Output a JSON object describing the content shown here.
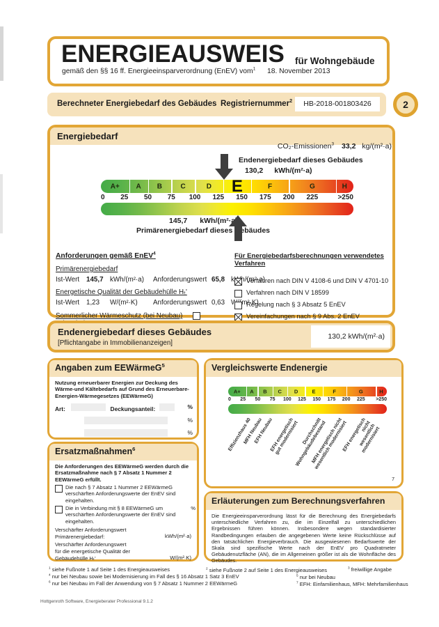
{
  "colors": {
    "gold_border": "#E2A636",
    "tan_header": "#F6E2BC",
    "scale_green": "#44ab47",
    "scale_yellow": "#fcf100",
    "scale_red": "#e2231a",
    "arrow_gray": "#3e3e3e"
  },
  "header": {
    "title": "ENERGIEAUSWEIS",
    "subtitle": "für Wohngebäude",
    "law_text": "gemäß den §§ 16 ff. Energieeinsparverordnung (EnEV) vom",
    "law_sup": "1",
    "law_date": "18. November 2013"
  },
  "regbar": {
    "label": "Berechneter Energiebedarf des Gebäudes",
    "reg_label": "Registriernummer",
    "reg_sup": "2",
    "reg_number": "HB-2018-001803426",
    "badge": "2"
  },
  "energiebedarf": {
    "section_title": "Energiebedarf",
    "co2_label": "CO₂-Emissionen",
    "co2_sup": "3",
    "co2_value": "33,2",
    "co2_unit": "kg/(m²·a)",
    "end_arrow_label": "Endenergiebedarf dieses Gebäudes",
    "end_value": "130,2",
    "end_unit": "kWh/(m²·a)",
    "prim_value": "145,7",
    "prim_unit": "kWh/(m²·a)",
    "prim_arrow_label": "Primärenergiebedarf dieses Gebäudes",
    "scale": {
      "letters": [
        "A+",
        "A",
        "B",
        "C",
        "D",
        "E",
        "F",
        "G",
        "H"
      ],
      "highlight": "E",
      "ticks": [
        "0",
        "25",
        "50",
        "75",
        "100",
        "125",
        "150",
        "175",
        "200",
        "225",
        ">250"
      ],
      "end_position": 130.2,
      "prim_position": 145.7,
      "axis_max": 250
    },
    "anf": {
      "title": "Anforderungen gemäß EnEV",
      "title_sup": "4",
      "prim_heading": "Primärenergiebedarf",
      "ist_label": "Ist-Wert",
      "ist_value": "145,7",
      "ist_unit": "kWh/(m²·a)",
      "anf_label": "Anforderungswert",
      "anf_value": "65,8",
      "anf_unit": "kWh/(m²·a)",
      "huelle_heading": "Energetische Qualität der Gebäudehülle Hₜ'",
      "ist2_label": "Ist-Wert",
      "ist2_value": "1,23",
      "ist2_unit": "W/(m²·K)",
      "anf2_label": "Anforderungswert",
      "anf2_value": "0,63",
      "anf2_unit": "W/(m²·K)",
      "sommer_heading": "Sommerlicher Wärmeschutz (bei Neubau)",
      "sommer_label": "eingehalten",
      "sommer_checked": false
    },
    "verfahren": {
      "title": "Für Energiebedarfsberechnungen verwendetes Verfahren",
      "items": [
        {
          "label": "Verfahren nach DIN V 4108-6 und DIN V 4701-10",
          "checked": true
        },
        {
          "label": "Verfahren nach DIN V 18599",
          "checked": false
        },
        {
          "label": "Regelung nach § 3 Absatz 5 EnEV",
          "checked": false
        },
        {
          "label": "Vereinfachungen nach § 9 Abs. 2 EnEV",
          "checked": true
        }
      ]
    }
  },
  "endbanner": {
    "title": "Endenergiebedarf dieses Gebäudes",
    "subtitle": "[Pflichtangabe in Immobilienanzeigen]",
    "value": "130,2 kWh/(m²·a)"
  },
  "eewaermeg": {
    "title": "Angaben zum EEWärmeG",
    "title_sup": "5",
    "intro": "Nutzung erneuerbarer Energien zur Deckung des Wärme-und Kältebedarfs auf Grund des Erneuerbare-Energien-Wärmegesetzes (EEWärmeG)",
    "art_label": "Art:",
    "share_label": "Deckungsanteil:",
    "percent": "%"
  },
  "ersatz": {
    "title": "Ersatzmaßnahmen",
    "title_sup": "6",
    "intro": "Die Anforderungen des EEWärmeG werden durch die Ersatzmaßnahme nach § 7 Absatz 1 Nummer 2 EEWärmeG erfüllt.",
    "cb1": "Die nach § 7 Absatz 1 Nummer 2 EEWärmeG verschärften Anforderungswerte der EnEV sind eingehalten.",
    "cb2_part1": "Die in Verbindung mit § 8 EEWärmeG um",
    "cb2_part2": "verschärften Anforderungswerte der EnEV sind eingehalten.",
    "percent": "%",
    "req1_text": "Verschärfter Anforderungswert\nPrimärenergiebedarf:",
    "req1_unit": "kWh/(m²·a)",
    "req2_text": "Verschärfter Anforderungswert\nfür die energetische Qualität der\nGebäudehülle Hₜ'",
    "req2_unit": "W/(m²·K)"
  },
  "vergleich": {
    "title": "Vergleichswerte Endenergie",
    "fn_sup": "7",
    "scale": {
      "letters": [
        "A+",
        "A",
        "B",
        "C",
        "D",
        "E",
        "F",
        "G",
        "H"
      ],
      "ticks": [
        "0",
        "25",
        "50",
        "75",
        "100",
        "125",
        "150",
        "175",
        "200",
        "225",
        ">250"
      ],
      "axis_max": 250
    },
    "labels": [
      {
        "value": 33,
        "label": "Effizienzhaus 40"
      },
      {
        "value": 52,
        "label": "MFH Neubau"
      },
      {
        "value": 70,
        "label": "EFH Neubau"
      },
      {
        "value": 105,
        "label": "EFH energetisch\ngut modernisiert"
      },
      {
        "value": 152,
        "label": "Durchschnitt\nWohngebäudebestand"
      },
      {
        "value": 187,
        "label": "MFH energetisch nicht\nwesentlich modernisiert"
      },
      {
        "value": 228,
        "label": "EFH energetisch nicht\nwesentlich modernisiert"
      }
    ]
  },
  "erlaeuterungen": {
    "title": "Erläuterungen zum Berechnungsverfahren",
    "text": "Die Energieeinsparverordnung lässt für die Berechnung des Energiebedarfs unterschiedliche Verfahren zu, die im Einzelfall zu unterschiedlichen Ergebnissen führen können. Insbesondere wegen standardisierter Randbedingungen erlauben die angegebenen Werte keine Rückschlüsse auf den tatsächlichen Energieverbrauch. Die ausgewiesenen Bedarfswerte der Skala sind spezifische Werte nach der EnEV pro Quadratmeter Gebäudenutzfläche (AN), die im Allgemeinen größer ist als die Wohnfläche des Gebäudes."
  },
  "footnotes": [
    {
      "m": "1",
      "t": "siehe Fußnote 1 auf Seite 1 des Energieausweises"
    },
    {
      "m": "2",
      "t": "siehe Fußnote 2 auf Seite 1 des Energieausweises"
    },
    {
      "m": "3",
      "t": "freiwillige Angabe"
    },
    {
      "m": "4",
      "t": "nur bei Neubau sowie bei Modernisierung im Fall des § 16 Absatz 1 Satz 3 EnEV"
    },
    {
      "m": "5",
      "t": "nur bei Neubau"
    },
    {
      "m": "6",
      "t": "nur bei Neubau im Fall der Anwendung von § 7 Absatz 1 Nummer 2 EEWärmeG"
    },
    {
      "m": "7",
      "t": "EFH: Einfamilienhaus, MFH: Mehrfamilienhaus"
    }
  ],
  "footer": "Hottgenroth Software, Energieberater Professional 9.1.2"
}
